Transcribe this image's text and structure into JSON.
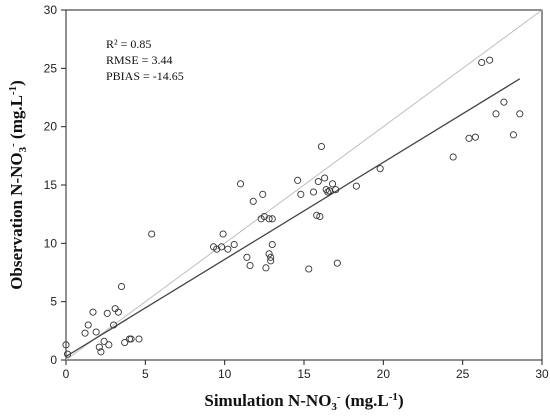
{
  "chart_data": {
    "type": "scatter",
    "xlabel": {
      "main": "Simulation N-NO",
      "sub": "3",
      "sup": "-",
      "unit": " (mg.L",
      "unit_sup": "-1",
      "end": ")"
    },
    "ylabel": {
      "main": "Observation N-NO",
      "sub": "3",
      "sup": "-",
      "unit": " (mg.L",
      "unit_sup": "-1",
      "end": ")"
    },
    "xlim": [
      0,
      30
    ],
    "ylim": [
      0,
      30
    ],
    "xticks": [
      "0",
      "5",
      "10",
      "15",
      "20",
      "25",
      "30"
    ],
    "yticks": [
      "0",
      "5",
      "10",
      "15",
      "20",
      "25",
      "30"
    ],
    "grid": false,
    "annotations": [
      "R² = 0.85",
      "RMSE = 3.44",
      "PBIAS = -14.65"
    ],
    "one_to_one_line": {
      "x": [
        0,
        30
      ],
      "y": [
        0,
        30
      ],
      "color": "#bfbfbf"
    },
    "regression_line": {
      "x": [
        0,
        28.6
      ],
      "y": [
        0.3,
        24.1
      ],
      "color": "#444444"
    },
    "points": {
      "x": [
        0.0,
        0.1,
        1.2,
        1.4,
        1.7,
        1.9,
        2.1,
        2.2,
        2.4,
        2.6,
        2.7,
        3.0,
        3.1,
        3.3,
        3.5,
        3.7,
        4.0,
        4.1,
        4.6,
        5.4,
        9.3,
        9.5,
        9.8,
        9.9,
        10.2,
        10.6,
        11.0,
        11.4,
        11.6,
        11.8,
        12.3,
        12.4,
        12.5,
        12.6,
        12.8,
        12.8,
        12.9,
        12.9,
        13.0,
        13.0,
        14.6,
        14.8,
        15.3,
        15.6,
        15.8,
        15.9,
        16.0,
        16.1,
        16.3,
        16.4,
        16.5,
        16.6,
        16.8,
        17.0,
        17.1,
        18.3,
        19.8,
        24.4,
        25.4,
        25.8,
        26.2,
        26.7,
        27.1,
        27.6,
        28.2,
        28.6
      ],
      "y": [
        1.3,
        0.5,
        2.3,
        3.0,
        4.1,
        2.4,
        1.1,
        0.7,
        1.6,
        4.0,
        1.3,
        3.0,
        4.4,
        4.1,
        6.3,
        1.5,
        1.8,
        1.8,
        1.8,
        10.8,
        9.7,
        9.5,
        9.7,
        10.8,
        9.5,
        9.9,
        15.1,
        8.8,
        8.1,
        13.6,
        12.1,
        14.2,
        12.3,
        7.9,
        9.1,
        12.1,
        8.8,
        8.5,
        9.9,
        12.1,
        15.4,
        14.2,
        7.8,
        14.4,
        12.4,
        15.3,
        12.3,
        18.3,
        15.6,
        14.6,
        14.4,
        14.5,
        15.1,
        14.6,
        8.3,
        14.9,
        16.4,
        17.4,
        19.0,
        19.1,
        25.5,
        25.7,
        21.1,
        22.1,
        19.3,
        21.1
      ]
    }
  }
}
